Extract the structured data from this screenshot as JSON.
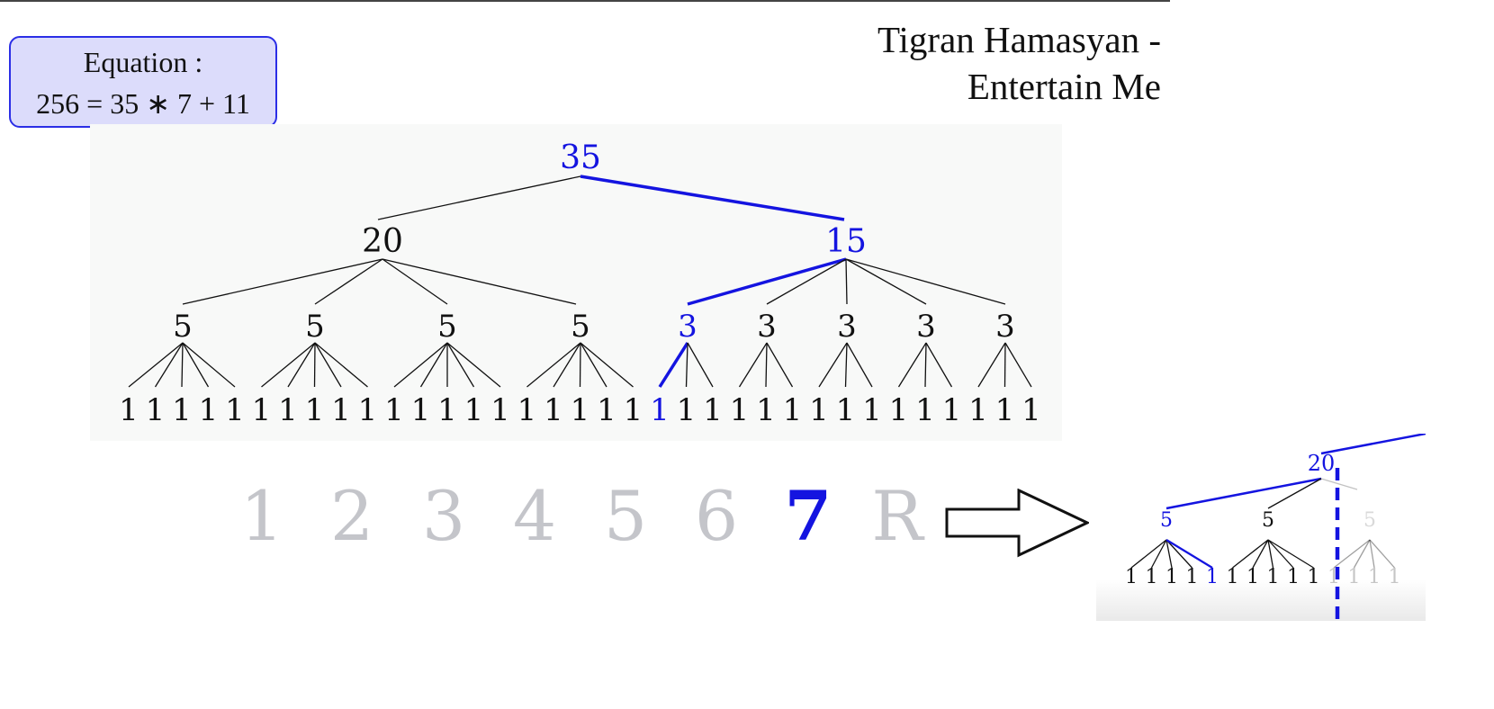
{
  "title": {
    "line1": "Tigran Hamasyan -",
    "line2": "Entertain Me"
  },
  "equation": {
    "label": "Equation :",
    "formula": "256 = 35 ∗ 7 + 11"
  },
  "tree": {
    "root": "35",
    "level1": [
      "20",
      "15"
    ],
    "level2": [
      "5",
      "5",
      "5",
      "5",
      "3",
      "3",
      "3",
      "3",
      "3"
    ],
    "leaf_value": "1"
  },
  "selector": {
    "items": [
      "1",
      "2",
      "3",
      "4",
      "5",
      "6",
      "7",
      "R"
    ],
    "active_index": 6
  },
  "zoom": {
    "node_20": "20",
    "node_5a": "5",
    "node_5b": "5",
    "node_5c": "5",
    "leaf_value": "1"
  },
  "colors": {
    "highlight": "#1414e0",
    "inactive_digit": "#c4c5ca",
    "edge": "#111111",
    "box_fill": "#dcdcfb",
    "box_border": "#2b2ee6"
  }
}
